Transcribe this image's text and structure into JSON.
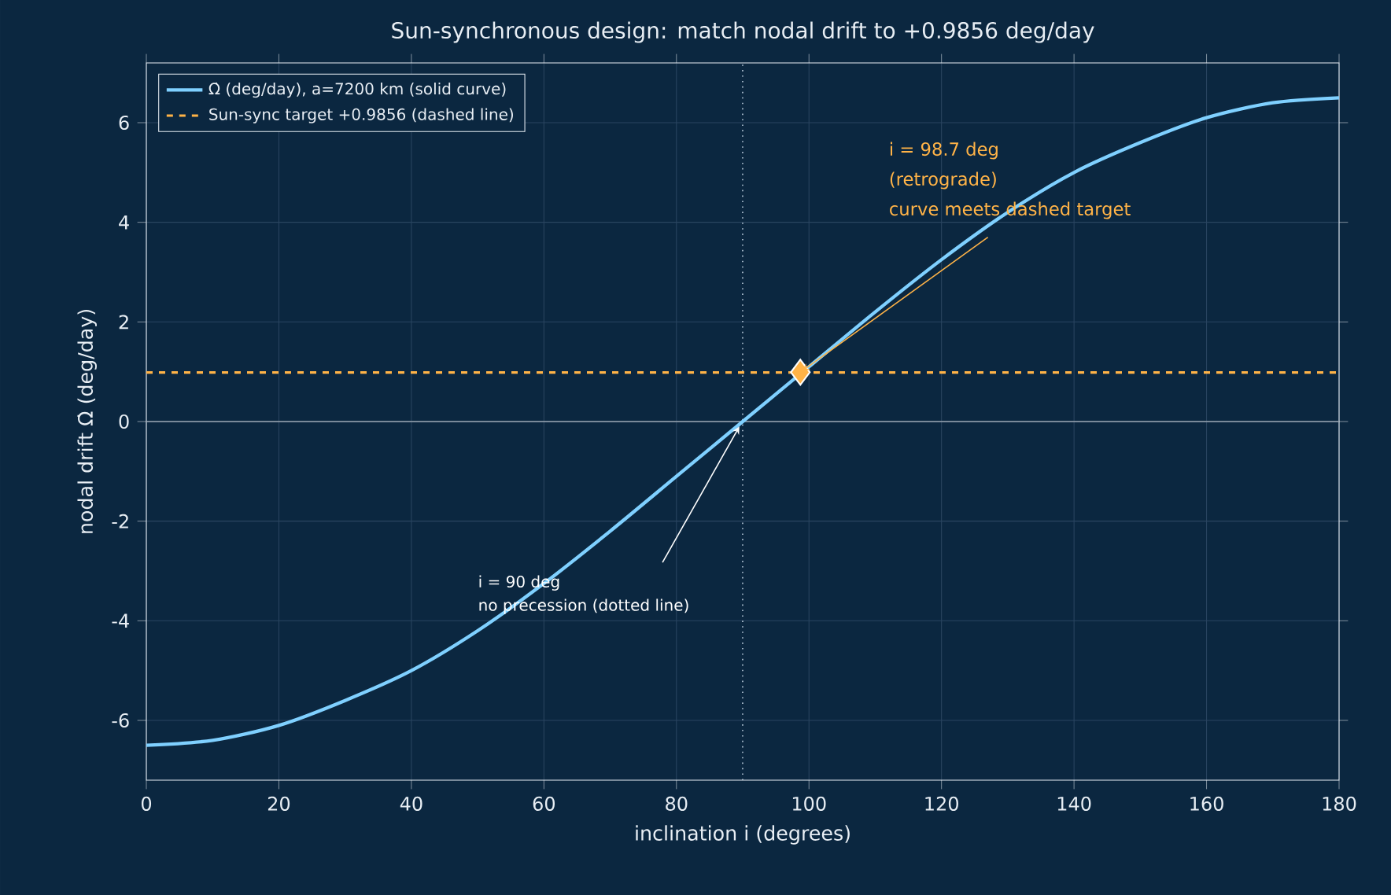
{
  "chart_data": {
    "type": "line",
    "title": "Sun-synchronous design: match nodal drift to +0.9856 deg/day",
    "xlabel": "inclination  i  (degrees)",
    "ylabel": "nodal drift  Ω̇  (deg/day)",
    "series": [
      {
        "name": "Ω̇ (deg/day), a=7200 km  (solid curve)",
        "color": "#7fd0ff",
        "marker": "none",
        "line_style": "solid",
        "x": [
          0,
          10,
          20,
          30,
          40,
          50,
          60,
          70,
          80,
          90,
          100,
          110,
          120,
          130,
          140,
          150,
          160,
          170,
          180
        ],
        "values": [
          -6.5,
          -6.4,
          -6.1,
          -5.6,
          -5.0,
          -4.2,
          -3.25,
          -2.2,
          -1.1,
          0,
          1.1,
          2.2,
          3.25,
          4.2,
          5.0,
          5.6,
          6.1,
          6.4,
          6.5
        ]
      },
      {
        "type": "scatter",
        "color": "#ffb347",
        "marker": "diamond",
        "x": [
          98.7
        ],
        "values": [
          0.99
        ]
      }
    ],
    "ref_lines": [
      {
        "axis": "y",
        "value": 0.9856,
        "label": "Sun-sync target +0.9856 (dashed line)",
        "color": "#ffb347",
        "line_style": "dashed"
      },
      {
        "axis": "x",
        "value": 90,
        "color": "#c8d8e8",
        "line_style": "dotted"
      },
      {
        "axis": "y",
        "value": 0,
        "color": "#9aa6b2",
        "line_style": "solid"
      }
    ],
    "annotations": [
      "i = 98.7 deg",
      "(retrograde)",
      {
        "text": "curve meets dashed target",
        "x": 98.7,
        "y": 0.99
      },
      "i = 90 deg",
      "no precession (dotted line)"
    ],
    "xlim": [
      0,
      180
    ],
    "ylim": [
      -7.2,
      7.2
    ],
    "xticks": [
      0,
      20,
      40,
      60,
      80,
      100,
      120,
      140,
      160,
      180
    ],
    "yticks": [
      -6,
      -4,
      -2,
      0,
      2,
      4,
      6
    ],
    "grid": true,
    "legend": "top left"
  }
}
